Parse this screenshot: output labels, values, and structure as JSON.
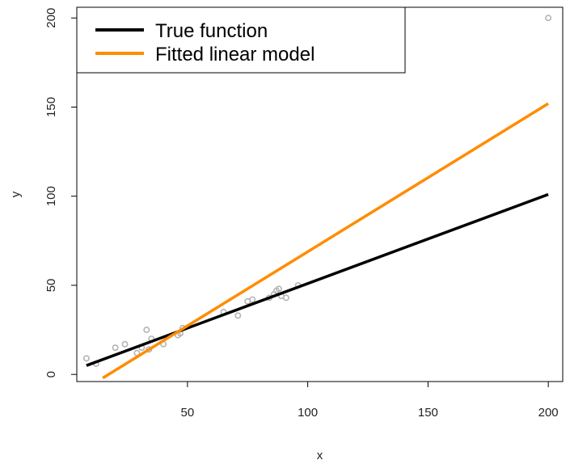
{
  "chart_data": {
    "type": "scatter",
    "title": "",
    "xlabel": "x",
    "ylabel": "y",
    "xlim": [
      4,
      206
    ],
    "ylim": [
      -4,
      206
    ],
    "x_ticks": [
      50,
      100,
      150,
      200
    ],
    "y_ticks": [
      0,
      50,
      100,
      150,
      200
    ],
    "grid": false,
    "legend_position": "top-left",
    "points": {
      "color": "#b4b4b4",
      "x": [
        8,
        12,
        20,
        24,
        29,
        31,
        33,
        34,
        35,
        40,
        46,
        47,
        48,
        65,
        71,
        75,
        77,
        84,
        86,
        87,
        88,
        89,
        91,
        96,
        200
      ],
      "y": [
        9,
        6,
        15,
        17,
        12,
        15,
        25,
        14,
        20,
        17,
        22,
        23,
        26,
        35,
        33,
        41,
        42,
        43,
        45,
        47,
        48,
        44,
        43,
        50,
        200
      ]
    },
    "series": [
      {
        "name": "True function",
        "color": "#000000",
        "x": [
          8,
          200
        ],
        "y": [
          5,
          101
        ]
      },
      {
        "name": "Fitted linear model",
        "color": "#ff8c00",
        "x": [
          14.8,
          200
        ],
        "y": [
          -2,
          152
        ]
      }
    ]
  }
}
